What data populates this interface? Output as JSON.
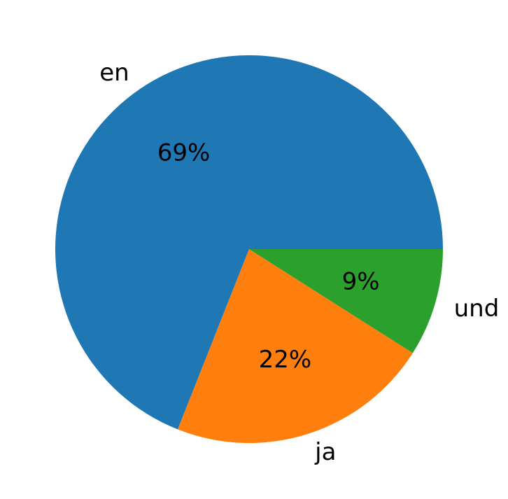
{
  "chart_data": {
    "type": "pie",
    "categories": [
      "en",
      "ja",
      "und"
    ],
    "values": [
      69,
      22,
      9
    ],
    "value_labels": [
      "69%",
      "22%",
      "9%"
    ],
    "colors": [
      "#1f77b4",
      "#ff7f0e",
      "#2ca02c"
    ],
    "start_angle_deg": 0,
    "direction": "counterclockwise",
    "legend": "none"
  }
}
